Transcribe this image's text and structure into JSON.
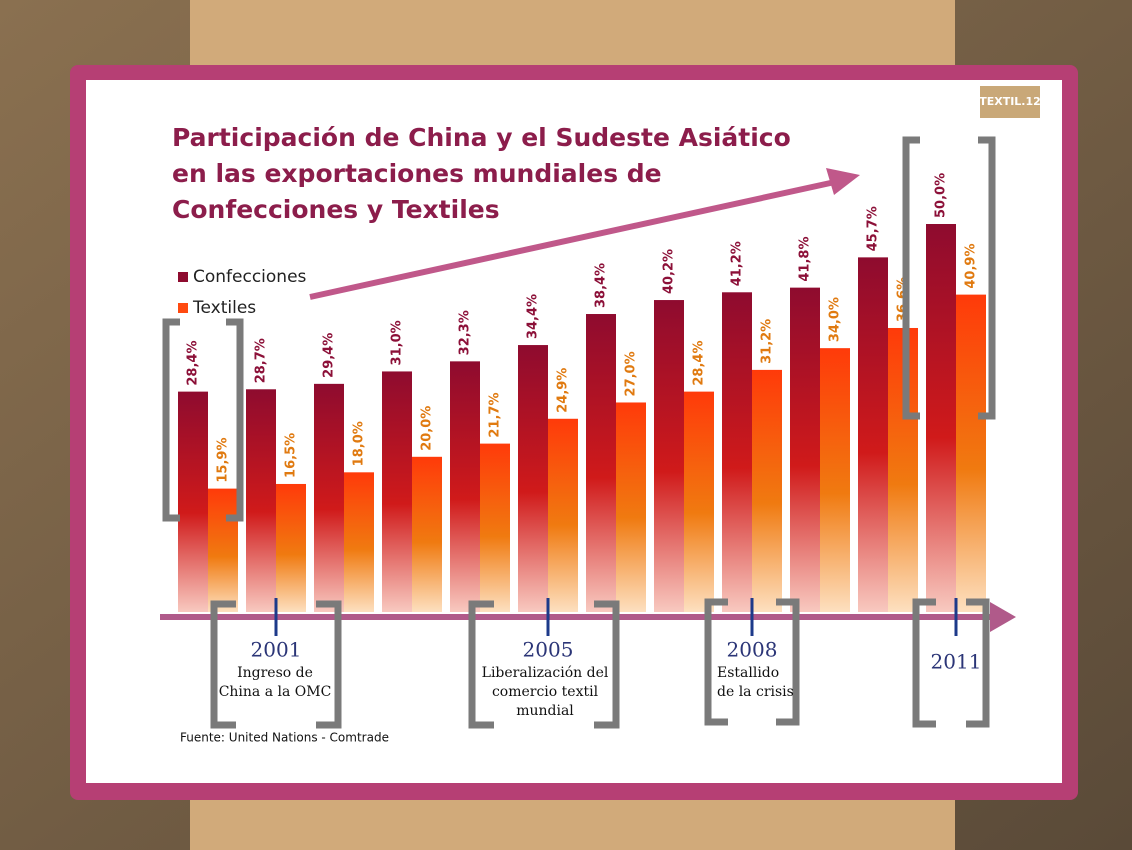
{
  "chart_data": {
    "type": "bar",
    "title": [
      "Participación de China y el Sudeste Asiático",
      "en las exportaciones mundiales de",
      "Confecciones y Textiles"
    ],
    "logo": "TEXTIL.12",
    "categories": [
      null,
      "2001",
      null,
      null,
      null,
      "2005",
      null,
      null,
      "2008",
      null,
      null,
      "2011"
    ],
    "series": [
      {
        "name": "Confecciones",
        "color": "#8e0b2f",
        "values": [
          28.4,
          28.7,
          29.4,
          31.0,
          32.3,
          34.4,
          38.4,
          40.2,
          41.2,
          41.8,
          45.7,
          50.0
        ],
        "value_labels": [
          "28,4%",
          "28,7%",
          "29,4%",
          "31,0%",
          "32,3%",
          "34,4%",
          "38,4%",
          "40,2%",
          "41,2%",
          "41,8%",
          "45,7%",
          "50,0%"
        ]
      },
      {
        "name": "Textiles",
        "color": "#ff4a10",
        "values": [
          15.9,
          16.5,
          18.0,
          20.0,
          21.7,
          24.9,
          27.0,
          28.4,
          31.2,
          34.0,
          36.6,
          40.9
        ],
        "value_labels": [
          "15,9%",
          "16,5%",
          "18,0%",
          "20,0%",
          "21,7%",
          "24,9%",
          "27,0%",
          "28,4%",
          "31,2%",
          "34,0%",
          "36,6%",
          "40,9%"
        ]
      }
    ],
    "annotations": [
      [
        "Ingreso de",
        "China a la OMC"
      ],
      [
        "Liberalización del",
        "comercio textil",
        "mundial"
      ],
      [
        "Estallido",
        "de la crisis"
      ]
    ],
    "source": "Fuente: United Nations - Comtrade"
  }
}
